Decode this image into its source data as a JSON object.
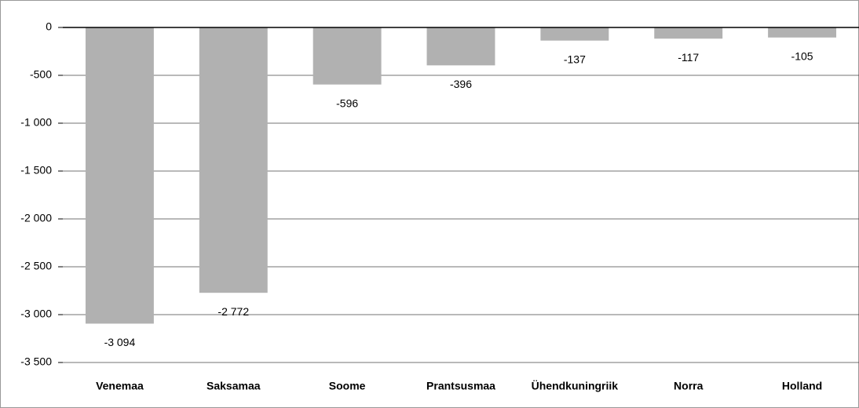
{
  "chart_data": {
    "type": "bar",
    "categories": [
      "Venemaa",
      "Saksamaa",
      "Soome",
      "Prantsusmaa",
      "Ühendkuningriik",
      "Norra",
      "Holland"
    ],
    "values": [
      -3094,
      -2772,
      -596,
      -396,
      -137,
      -117,
      -105
    ],
    "value_labels": [
      "-3 094",
      "-2 772",
      "-596",
      "-396",
      "-137",
      "-117",
      "-105"
    ],
    "color": "#b1b1b1",
    "ylim": [
      -3500,
      0
    ],
    "yticks": [
      0,
      -500,
      {
        "value": -1000,
        "label": "-1 000"
      },
      {
        "value": -1500,
        "label": "-1 500"
      },
      {
        "value": -2000,
        "label": "-2 000"
      },
      {
        "value": -2500,
        "label": "-2 500"
      },
      {
        "value": -3000,
        "label": "-3 000"
      },
      {
        "value": -3500,
        "label": "-3 500"
      }
    ],
    "grid": true
  }
}
